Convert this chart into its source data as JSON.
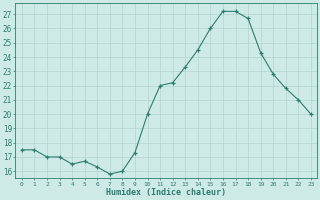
{
  "x": [
    0,
    1,
    2,
    3,
    4,
    5,
    6,
    7,
    8,
    9,
    10,
    11,
    12,
    13,
    14,
    15,
    16,
    17,
    18,
    19,
    20,
    21,
    22,
    23
  ],
  "y": [
    17.5,
    17.5,
    17.0,
    17.0,
    16.5,
    16.7,
    16.3,
    15.8,
    16.0,
    17.3,
    20.0,
    22.0,
    22.2,
    23.3,
    24.5,
    26.0,
    27.2,
    27.2,
    26.7,
    24.3,
    22.8,
    21.8,
    21.0,
    20.0
  ],
  "xlabel": "Humidex (Indice chaleur)",
  "ylim": [
    15.5,
    27.8
  ],
  "xlim": [
    -0.5,
    23.5
  ],
  "line_color": "#2e7d6e",
  "marker": "+",
  "bg_color": "#ceeae7",
  "grid_color": "#b0d4d0",
  "tick_labels": [
    "0",
    "1",
    "2",
    "3",
    "4",
    "5",
    "6",
    "7",
    "8",
    "9",
    "10",
    "11",
    "12",
    "13",
    "14",
    "15",
    "16",
    "17",
    "18",
    "19",
    "20",
    "21",
    "22",
    "23"
  ],
  "yticks": [
    16,
    17,
    18,
    19,
    20,
    21,
    22,
    23,
    24,
    25,
    26,
    27
  ]
}
